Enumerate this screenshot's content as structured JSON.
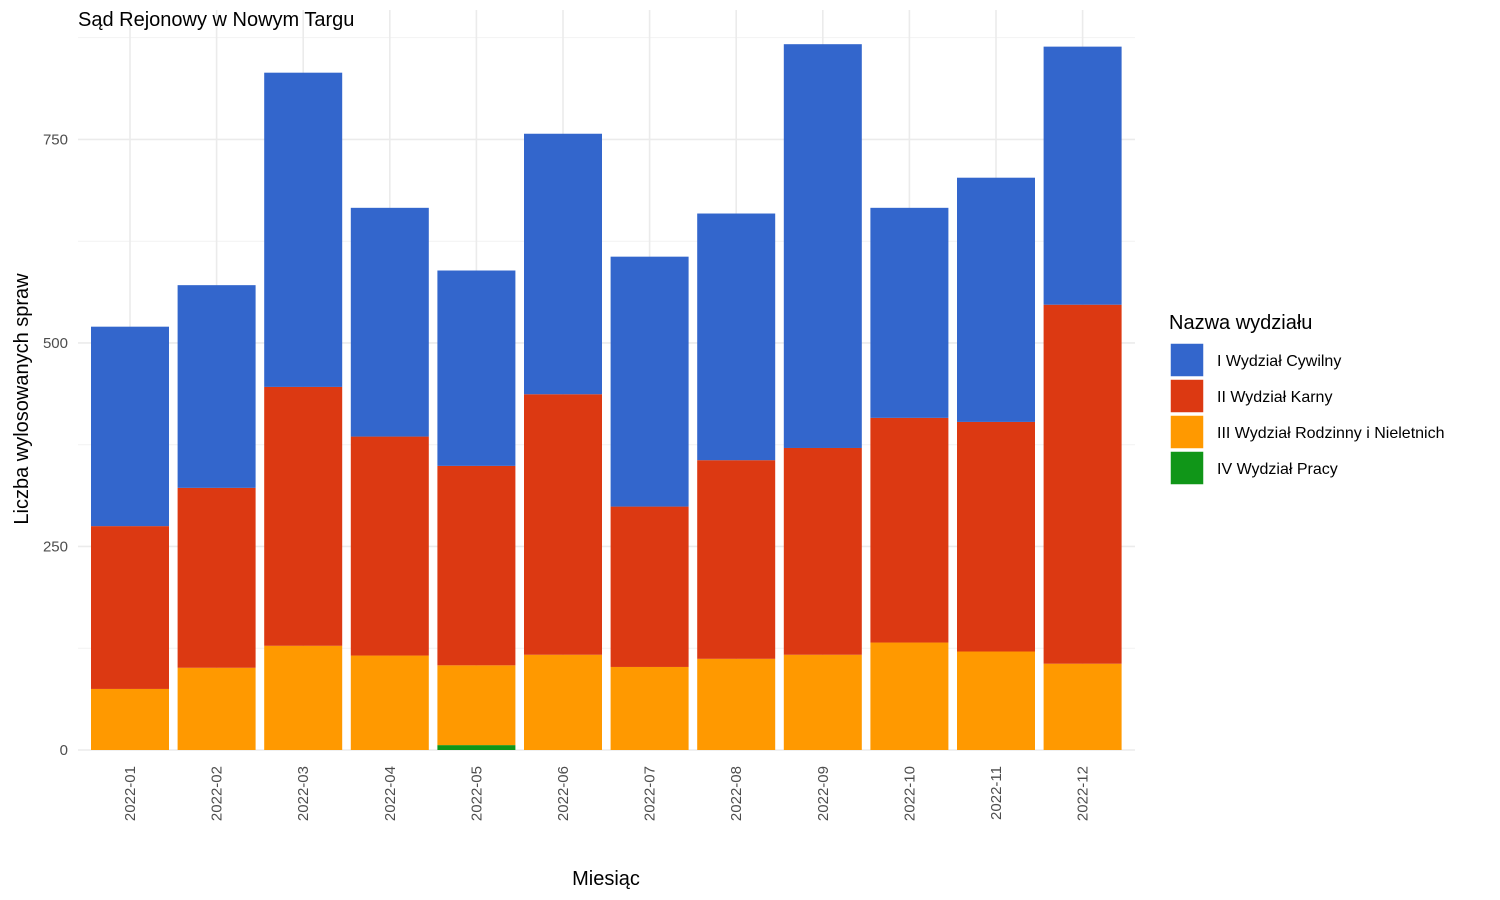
{
  "chart_data": {
    "type": "bar",
    "stacked": true,
    "title": "Sąd Rejonowy w Nowym Targu",
    "xlabel": "Miesiąc",
    "ylabel": "Liczba wylosowanych spraw",
    "ylim": [
      0,
      900
    ],
    "yticks": [
      0,
      250,
      500,
      750
    ],
    "yticks_labels": [
      "0",
      "250",
      "500",
      "750"
    ],
    "grid": true,
    "legend_title": "Nazwa wydziału",
    "legend_position": "right",
    "categories": [
      "2022-01",
      "2022-02",
      "2022-03",
      "2022-04",
      "2022-05",
      "2022-06",
      "2022-07",
      "2022-08",
      "2022-09",
      "2022-10",
      "2022-11",
      "2022-12"
    ],
    "series": [
      {
        "name": "I Wydział Cywilny",
        "color": "#3366cc",
        "values": [
          245,
          249,
          386,
          281,
          240,
          320,
          307,
          303,
          496,
          258,
          300,
          317
        ]
      },
      {
        "name": "II Wydział Karny",
        "color": "#dc3912",
        "values": [
          200,
          221,
          318,
          269,
          245,
          320,
          197,
          244,
          254,
          276,
          282,
          441
        ]
      },
      {
        "name": "III Wydział Rodzinny i Nieletnich",
        "color": "#ff9900",
        "values": [
          75,
          101,
          128,
          116,
          98,
          117,
          102,
          112,
          117,
          132,
          121,
          106
        ]
      },
      {
        "name": "IV Wydział Pracy",
        "color": "#109618",
        "values": [
          0,
          0,
          0,
          0,
          6,
          0,
          0,
          0,
          0,
          0,
          0,
          0
        ]
      }
    ]
  }
}
